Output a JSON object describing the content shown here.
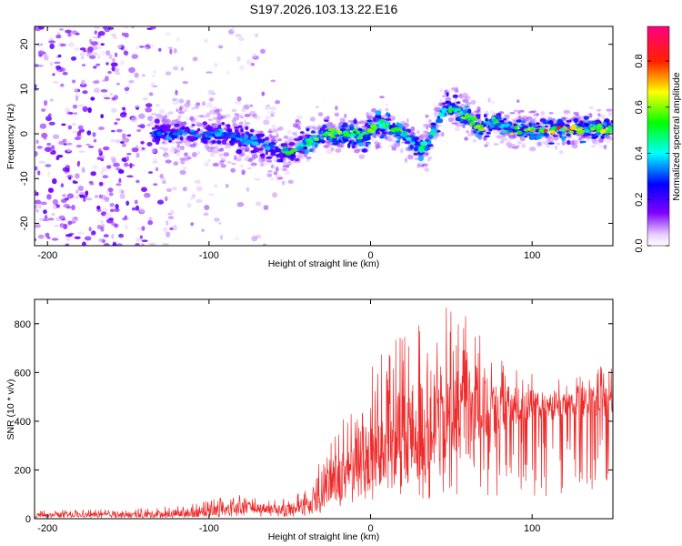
{
  "title": "S197.2026.103.13.22.E16",
  "chart_data": [
    {
      "type": "heatmap",
      "name": "spectrogram",
      "xlabel": "Height of straight line (km)",
      "ylabel": "Frequency (Hz)",
      "xlim": [
        -208,
        150
      ],
      "ylim": [
        -25,
        24
      ],
      "xticks": [
        -200,
        -100,
        0,
        100
      ],
      "yticks": [
        -20,
        -10,
        0,
        10,
        20
      ],
      "grid": false,
      "colormap": [
        "#ffffff",
        "#8000ff",
        "#0000ff",
        "#00ffff",
        "#00ff00",
        "#ffff00",
        "#ff0000",
        "#ff0080"
      ],
      "ridge_frequency_hz": {
        "x": [
          -130,
          -110,
          -90,
          -80,
          -70,
          -60,
          -55,
          -50,
          -45,
          -40,
          -35,
          -30,
          -25,
          -20,
          -15,
          -10,
          -5,
          0,
          5,
          10,
          15,
          20,
          25,
          28,
          30,
          35,
          40,
          45,
          50,
          55,
          60,
          65,
          70,
          75,
          80,
          85,
          90,
          100,
          110,
          120,
          130,
          140,
          150
        ],
        "y": [
          0,
          0,
          0,
          -1,
          -2,
          -3,
          -4,
          -4,
          -3,
          -2,
          -1,
          0,
          0,
          0,
          0,
          0,
          -1,
          1,
          2,
          2,
          1,
          0,
          -1,
          -3,
          -4,
          -2,
          1,
          5,
          6,
          5,
          4,
          2,
          1,
          3,
          2,
          1,
          1,
          1,
          1,
          1,
          1,
          1,
          1
        ]
      }
    },
    {
      "type": "line",
      "name": "snr",
      "xlabel": "Height of straight line (km)",
      "ylabel": "SNR (10 * v/v)",
      "xlim": [
        -208,
        150
      ],
      "ylim": [
        0,
        900
      ],
      "xticks": [
        -200,
        -100,
        0,
        100
      ],
      "yticks": [
        0,
        200,
        400,
        600,
        800
      ],
      "color": "#ee2a2a",
      "grid": false,
      "envelope": {
        "x": [
          -208,
          -150,
          -120,
          -100,
          -80,
          -70,
          -60,
          -50,
          -40,
          -30,
          -20,
          -10,
          0,
          10,
          20,
          30,
          40,
          50,
          60,
          70,
          80,
          90,
          100,
          110,
          120,
          130,
          140,
          150
        ],
        "mean": [
          15,
          15,
          20,
          30,
          45,
          45,
          40,
          40,
          60,
          110,
          170,
          230,
          260,
          290,
          330,
          370,
          410,
          430,
          440,
          440,
          450,
          460,
          470,
          460,
          460,
          470,
          480,
          480
        ],
        "max": [
          35,
          38,
          55,
          75,
          105,
          90,
          80,
          90,
          130,
          260,
          400,
          520,
          620,
          700,
          780,
          840,
          880,
          870,
          840,
          760,
          680,
          640,
          600,
          580,
          570,
          590,
          620,
          640
        ]
      }
    }
  ],
  "colorbar": {
    "label": "Normalized spectral amplitude",
    "range": [
      0.0,
      0.95
    ],
    "ticks": [
      0.0,
      0.2,
      0.4,
      0.6,
      0.8
    ],
    "tick_labels": [
      "0.0",
      "0.2",
      "0.4",
      "0.6",
      "0.8"
    ]
  }
}
